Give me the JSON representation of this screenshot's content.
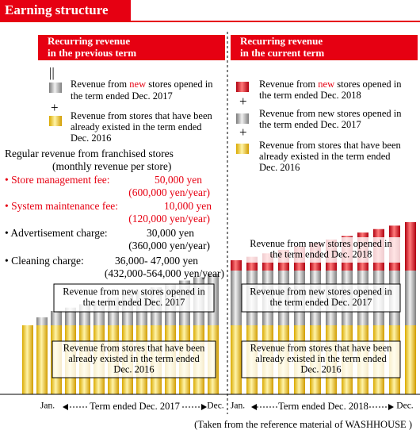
{
  "header": {
    "title": "Earning structure"
  },
  "previous_term": {
    "heading": [
      "Recurring revenue",
      "in the previous term"
    ],
    "equals": "||",
    "plus": "+",
    "legend_new": [
      [
        "Revenue from ",
        "new",
        " stores opened in"
      ],
      [
        "the term ended Dec. 2017"
      ]
    ],
    "legend_existing": [
      "Revenue from stores that have been",
      "already existed in the term ended",
      "Dec. 2016"
    ]
  },
  "current_term": {
    "heading": [
      "Recurring revenue",
      "in the current term"
    ],
    "plus": "+",
    "legend_new": [
      [
        "Revenue from ",
        "new",
        " stores opened in"
      ],
      [
        "the term ended Dec. 2018"
      ]
    ],
    "legend_prev": [
      "Revenue from new stores opened in",
      "the term ended Dec. 2017"
    ],
    "legend_existing": [
      "Revenue from stores that have been",
      "already existed in the term ended",
      "Dec. 2016"
    ]
  },
  "franchise": {
    "title": "Regular revenue from franchised stores",
    "subtitle": "(monthly revenue per store)",
    "items": [
      {
        "label": "• Store management fee:",
        "amount": "50,000 yen",
        "annual": "(600,000 yen/year)"
      },
      {
        "label": "• System maintenance fee:",
        "amount": "10,000 yen",
        "annual": "(120,000 yen/year)"
      },
      {
        "label": "• Advertisement charge:",
        "amount": "30,000 yen",
        "annual": "(360,000 yen/year)"
      },
      {
        "label": "• Cleaning charge:",
        "amount": "36,000- 47,000 yen",
        "annual": "(432,000-564,000 yen/year)"
      }
    ]
  },
  "boxes": {
    "left_new": [
      "Revenue from new stores opened in",
      "the term ended Dec. 2017"
    ],
    "left_existing": [
      "Revenue from stores that have been",
      "already existed in the term ended",
      "Dec. 2016"
    ],
    "right_new": [
      "Revenue from new stores opened in",
      "the term ended Dec. 2018"
    ],
    "right_prev": [
      "Revenue from new stores opened in",
      "the term ended Dec. 2017"
    ],
    "right_existing": [
      "Revenue from stores that have been",
      "already existed in the term ended",
      "Dec. 2016"
    ]
  },
  "axis": {
    "left": {
      "start": "Jan.",
      "term": "Term ended Dec. 2017",
      "end": "Dec."
    },
    "right": {
      "start": "Jan.",
      "term": "Term ended Dec. 2018",
      "end": "Dec."
    }
  },
  "source": "(Taken from the reference material of WASHHOUSE )"
}
